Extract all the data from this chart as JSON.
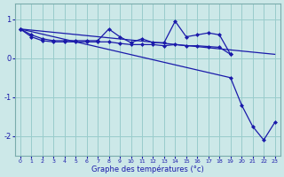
{
  "xlabel": "Graphe des températures (°c)",
  "background_color": "#cce8e8",
  "grid_color": "#99cccc",
  "line_color": "#1a1aaa",
  "xlim": [
    -0.5,
    23.5
  ],
  "ylim": [
    -2.5,
    1.4
  ],
  "yticks": [
    -2,
    -1,
    0,
    1
  ],
  "xticks": [
    0,
    1,
    2,
    3,
    4,
    5,
    6,
    7,
    8,
    9,
    10,
    11,
    12,
    13,
    14,
    15,
    16,
    17,
    18,
    19,
    20,
    21,
    22,
    23
  ],
  "series": [
    {
      "x": [
        0,
        1,
        2,
        3,
        4,
        5,
        6,
        7,
        8,
        9,
        10,
        11,
        12,
        13,
        14,
        15,
        16,
        17,
        18,
        19
      ],
      "y": [
        0.75,
        0.6,
        0.5,
        0.45,
        0.45,
        0.45,
        0.45,
        0.45,
        0.75,
        0.55,
        0.4,
        0.5,
        0.4,
        0.4,
        0.95,
        0.55,
        0.6,
        0.65,
        0.6,
        0.1
      ],
      "marker": "D",
      "markersize": 2.0,
      "linewidth": 0.9,
      "dashed": false
    },
    {
      "x": [
        0,
        1,
        2,
        3,
        4,
        5,
        6,
        7,
        8,
        9,
        10,
        11,
        12,
        13,
        14,
        15,
        16,
        17,
        18,
        19
      ],
      "y": [
        0.75,
        0.55,
        0.45,
        0.42,
        0.42,
        0.42,
        0.42,
        0.42,
        0.42,
        0.38,
        0.35,
        0.35,
        0.35,
        0.32,
        0.35,
        0.32,
        0.32,
        0.3,
        0.28,
        0.1
      ],
      "marker": "D",
      "markersize": 2.0,
      "linewidth": 0.9,
      "dashed": false
    },
    {
      "x": [
        0,
        23
      ],
      "y": [
        0.75,
        0.1
      ],
      "marker": null,
      "markersize": 0,
      "linewidth": 0.9,
      "dashed": false
    },
    {
      "x": [
        0,
        19,
        20,
        21,
        22,
        23
      ],
      "y": [
        0.75,
        -0.5,
        -1.2,
        -1.75,
        -2.1,
        -1.65
      ],
      "marker": "D",
      "markersize": 2.0,
      "linewidth": 0.9,
      "dashed": false
    }
  ]
}
